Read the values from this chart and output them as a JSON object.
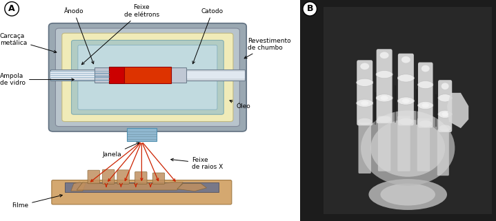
{
  "fig_width": 7.19,
  "fig_height": 3.21,
  "dpi": 100,
  "bg_color": "#ffffff",
  "panel_A_label": "A",
  "panel_B_label": "B",
  "labels": {
    "anodo": "Ânodo",
    "feixe_eletrons": "Feixe\nde elétrons",
    "catodo": "Catodo",
    "carcaca": "Carcaça\nmetálica",
    "revestimento": "Revestimento\nde chumbo",
    "ampola": "Ampola\nde vidro",
    "oleo": "Óleo",
    "janela": "Janela",
    "feixe_raios": "Feixe\nde raios X",
    "filme": "Filme"
  },
  "outer_box_color": "#a8b4bc",
  "yellow_fill": "#f0ebb8",
  "blue_fill": "#b8d8e8",
  "tube_gray": "#c8d0d8",
  "red_target": "#dd2200",
  "ray_color": "#cc2200",
  "window_blue": "#90b8d0",
  "platform_tan": "#d4a870",
  "film_gray": "#707888",
  "hand_skin": "#c8a07860",
  "xray_bg": "#1c1c1c",
  "xray_photo_bg": "#2a2a2a"
}
